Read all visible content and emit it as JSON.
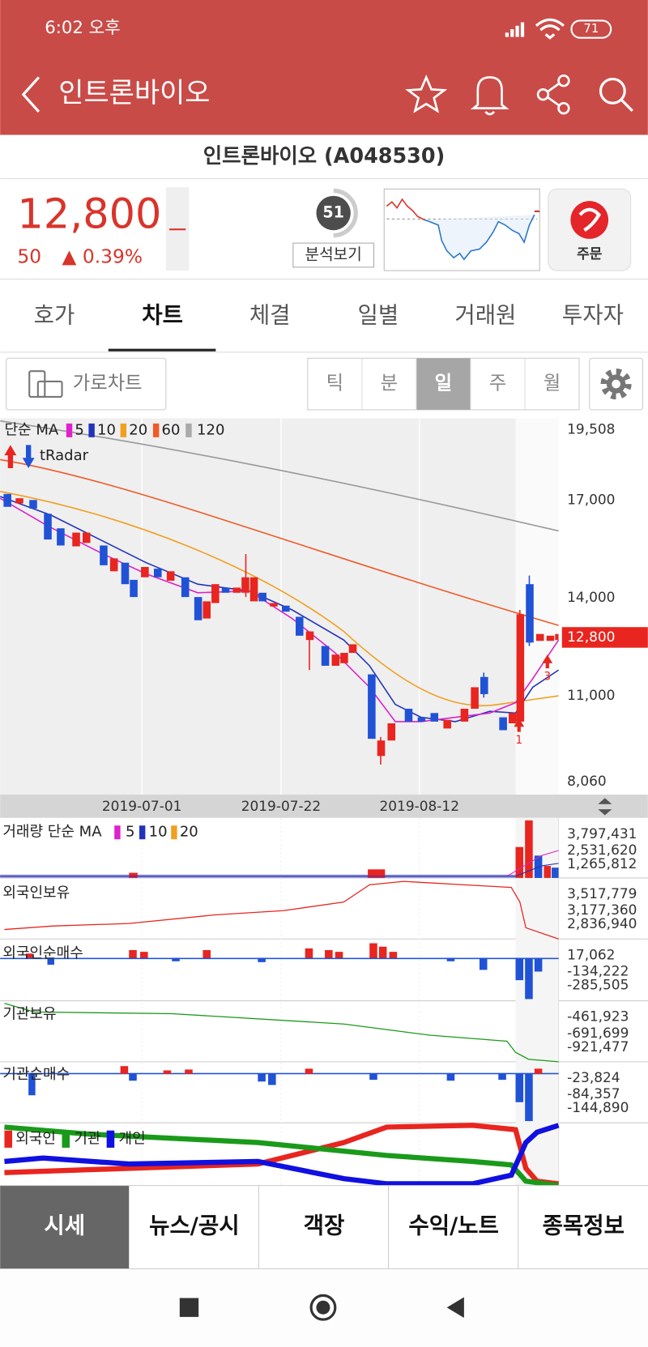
{
  "status": {
    "time": "6:02 오후",
    "battery": "71"
  },
  "appbar": {
    "title": "인트론바이오"
  },
  "stock": {
    "name": "인트론바이오 (A048530)",
    "price": "12,800",
    "change": "50",
    "change_pct": "▲ 0.39%",
    "score": "51",
    "analysis": "분석보기",
    "order": "주문"
  },
  "tabs": [
    "호가",
    "차트",
    "체결",
    "일별",
    "거래원",
    "투자자"
  ],
  "toolbar": {
    "landscape": "가로차트",
    "periods": [
      "틱",
      "분",
      "일",
      "주",
      "월"
    ]
  },
  "chart": {
    "legend_title": "단순 MA",
    "ma": [
      "5",
      "10",
      "20",
      "60",
      "120"
    ],
    "radar": "tRadar",
    "price_labels": [
      "19,508",
      "17,000",
      "14,000",
      "11,000",
      "8,060"
    ],
    "current": "12,800",
    "dates": [
      "2019-07-01",
      "2019-07-22",
      "2019-08-12"
    ],
    "signals": [
      "1",
      "3"
    ]
  },
  "panels": [
    {
      "title": "거래량 단순 MA",
      "legend": [
        "5",
        "10",
        "20"
      ],
      "labels": [
        "3,797,431",
        "2,531,620",
        "1,265,812"
      ]
    },
    {
      "title": "외국인보유",
      "labels": [
        "3,517,779",
        "3,177,360",
        "2,836,940"
      ]
    },
    {
      "title": "외국인순매수",
      "labels": [
        "17,062",
        "-134,222",
        "-285,505"
      ]
    },
    {
      "title": "기관보유",
      "labels": [
        "-461,923",
        "-691,699",
        "-921,477"
      ]
    },
    {
      "title": "기관순매수",
      "labels": [
        "-23,824",
        "-84,357",
        "-144,890"
      ]
    },
    {
      "legend": [
        "외국인",
        "기관",
        "개인"
      ]
    }
  ],
  "bottom_tabs": [
    "시세",
    "뉴스/공시",
    "객장",
    "수익/노트",
    "종목정보"
  ]
}
